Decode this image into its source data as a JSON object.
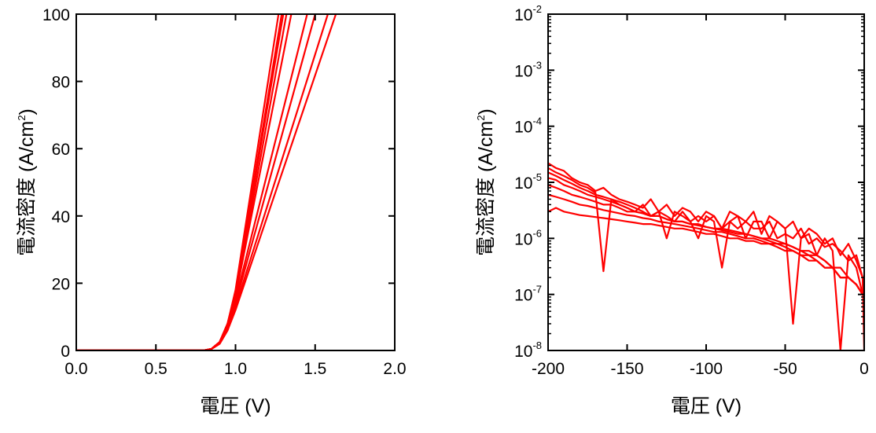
{
  "colors": {
    "series": "#ff0000",
    "axes": "#000000",
    "background": "#ffffff"
  },
  "chart_data": [
    {
      "type": "line",
      "xlabel": "電圧 (V)",
      "ylabel": "電流密度 (A/cm²)",
      "ylabel_parts": {
        "text": "電流密度 (A/cm",
        "sup": "2",
        "close": ")"
      },
      "xlim": [
        0.0,
        2.0
      ],
      "ylim": [
        0,
        100
      ],
      "xscale": "linear",
      "yscale": "linear",
      "x_ticks": [
        0.0,
        0.5,
        1.0,
        1.5,
        2.0
      ],
      "x_tick_labels": [
        "0.0",
        "0.5",
        "1.0",
        "1.5",
        "2.0"
      ],
      "y_ticks": [
        0,
        20,
        40,
        60,
        80,
        100
      ],
      "y_tick_labels": [
        "0",
        "20",
        "40",
        "60",
        "80",
        "100"
      ],
      "grid": false,
      "legend": "none",
      "series": [
        {
          "x": [
            0.0,
            0.8,
            0.85,
            0.9,
            0.95,
            1.0,
            1.27
          ],
          "y": [
            0,
            0,
            0.5,
            2.5,
            8,
            18,
            100
          ]
        },
        {
          "x": [
            0.0,
            0.8,
            0.85,
            0.9,
            0.95,
            1.0,
            1.29
          ],
          "y": [
            0,
            0,
            0.5,
            2.5,
            8,
            17,
            100
          ]
        },
        {
          "x": [
            0.0,
            0.8,
            0.85,
            0.9,
            0.95,
            1.0,
            1.3
          ],
          "y": [
            0,
            0,
            0.5,
            2.5,
            8,
            17,
            100
          ]
        },
        {
          "x": [
            0.0,
            0.8,
            0.85,
            0.9,
            0.95,
            1.0,
            1.32
          ],
          "y": [
            0,
            0,
            0.5,
            2.5,
            7,
            16,
            100
          ]
        },
        {
          "x": [
            0.0,
            0.8,
            0.85,
            0.9,
            0.95,
            1.0,
            1.35
          ],
          "y": [
            0,
            0,
            0.5,
            2.5,
            7,
            16,
            100
          ]
        },
        {
          "x": [
            0.0,
            0.8,
            0.85,
            0.9,
            0.95,
            1.0,
            1.45
          ],
          "y": [
            0,
            0,
            0.5,
            2.5,
            7,
            15,
            100
          ]
        },
        {
          "x": [
            0.0,
            0.8,
            0.85,
            0.9,
            0.95,
            1.0,
            1.5
          ],
          "y": [
            0,
            0,
            0.5,
            2,
            6,
            14,
            100
          ]
        },
        {
          "x": [
            0.0,
            0.8,
            0.85,
            0.9,
            0.95,
            1.0,
            1.58
          ],
          "y": [
            0,
            0,
            0.5,
            2,
            6,
            13,
            100
          ]
        },
        {
          "x": [
            0.0,
            0.8,
            0.85,
            0.9,
            0.95,
            1.0,
            1.63
          ],
          "y": [
            0,
            0,
            0.5,
            2,
            6,
            12,
            100
          ]
        }
      ]
    },
    {
      "type": "line",
      "xlabel": "電圧 (V)",
      "ylabel": "電流密度 (A/cm²)",
      "ylabel_parts": {
        "text": "電流密度 (A/cm",
        "sup": "2",
        "close": ")"
      },
      "xlim": [
        -200,
        0
      ],
      "ylim": [
        1e-08,
        0.01
      ],
      "xscale": "linear",
      "yscale": "log",
      "x_ticks": [
        -200,
        -150,
        -100,
        -50,
        0
      ],
      "x_tick_labels": [
        "-200",
        "-150",
        "-100",
        "-50",
        "0"
      ],
      "y_ticks": [
        1e-08,
        1e-07,
        1e-06,
        1e-05,
        0.0001,
        0.001,
        0.01
      ],
      "y_tick_labels": [
        {
          "base": "10",
          "exp": "-8"
        },
        {
          "base": "10",
          "exp": "-7"
        },
        {
          "base": "10",
          "exp": "-6"
        },
        {
          "base": "10",
          "exp": "-5"
        },
        {
          "base": "10",
          "exp": "-4"
        },
        {
          "base": "10",
          "exp": "-3"
        },
        {
          "base": "10",
          "exp": "-2"
        }
      ],
      "grid": false,
      "legend": "none",
      "series": [
        {
          "x": [
            -200,
            -195,
            -190,
            -185,
            -180,
            -175,
            -170,
            -165,
            -160,
            -155,
            -150,
            -145,
            -140,
            -135,
            -130,
            -125,
            -120,
            -115,
            -110,
            -105,
            -100,
            -95,
            -90,
            -85,
            -80,
            -75,
            -70,
            -65,
            -60,
            -55,
            -50,
            -45,
            -40,
            -35,
            -30,
            -25,
            -20,
            -15,
            -10,
            -5,
            -1,
            0
          ],
          "y": [
            2.2e-05,
            1.8e-05,
            1.6e-05,
            1.2e-05,
            1e-05,
            9e-06,
            7e-06,
            8e-06,
            6e-06,
            5e-06,
            4.5e-06,
            4e-06,
            3.5e-06,
            5e-06,
            3e-06,
            4e-06,
            2.5e-06,
            3.5e-06,
            3e-06,
            2e-06,
            3e-06,
            2.5e-06,
            1.5e-06,
            3e-06,
            2.5e-06,
            2e-06,
            3e-06,
            1.2e-06,
            2.5e-06,
            2e-06,
            1.5e-06,
            2e-06,
            1e-06,
            1.5e-06,
            1.2e-06,
            8e-07,
            1e-06,
            5e-07,
            8e-07,
            4e-07,
            2e-07,
            1e-08
          ]
        },
        {
          "x": [
            -200,
            -195,
            -190,
            -185,
            -180,
            -175,
            -170,
            -165,
            -160,
            -155,
            -150,
            -145,
            -140,
            -135,
            -130,
            -125,
            -120,
            -115,
            -110,
            -105,
            -100,
            -95,
            -90,
            -85,
            -80,
            -75,
            -70,
            -65,
            -60,
            -55,
            -50,
            -45,
            -40,
            -35,
            -30,
            -25,
            -20,
            -15,
            -10,
            -5,
            -1
          ],
          "y": [
            1.8e-05,
            1.5e-05,
            1.3e-05,
            1.1e-05,
            9e-06,
            8e-06,
            6.5e-06,
            2.6e-07,
            5e-06,
            4.5e-06,
            4e-06,
            3.5e-06,
            3e-06,
            2.5e-06,
            3e-06,
            1e-06,
            3e-06,
            2.5e-06,
            2e-06,
            2.5e-06,
            2e-06,
            2.5e-06,
            1.5e-06,
            2e-06,
            2.5e-06,
            1e-06,
            2e-06,
            2e-06,
            1e-06,
            2e-06,
            1.5e-06,
            3e-08,
            1e-06,
            1.2e-06,
            5e-07,
            1e-06,
            6e-07,
            1e-08,
            5e-07,
            3e-07,
            1e-07
          ]
        },
        {
          "x": [
            -200,
            -195,
            -190,
            -185,
            -180,
            -175,
            -170,
            -165,
            -160,
            -155,
            -150,
            -145,
            -140,
            -135,
            -130,
            -125,
            -120,
            -115,
            -110,
            -105,
            -100,
            -95,
            -90,
            -85,
            -80,
            -75,
            -70,
            -65,
            -60,
            -55,
            -50,
            -45,
            -40,
            -35,
            -30,
            -25,
            -20,
            -15,
            -10,
            -5,
            -1
          ],
          "y": [
            1.5e-05,
            1.3e-05,
            1.1e-05,
            9.5e-06,
            8e-06,
            7e-06,
            6e-06,
            5.5e-06,
            5e-06,
            4e-06,
            3.5e-06,
            3e-06,
            4e-06,
            2.5e-06,
            3e-06,
            2.5e-06,
            2e-06,
            3e-06,
            2e-06,
            1e-06,
            2.5e-06,
            2e-06,
            3e-07,
            2e-06,
            1.5e-06,
            2e-06,
            1.5e-06,
            1.5e-06,
            2e-06,
            1e-06,
            1.2e-06,
            1e-06,
            1.5e-06,
            8e-07,
            1e-06,
            7e-07,
            8e-07,
            6e-07,
            4e-07,
            5e-07,
            2e-07
          ]
        },
        {
          "x": [
            -200,
            -195,
            -190,
            -185,
            -180,
            -175,
            -170,
            -165,
            -160,
            -155,
            -150,
            -145,
            -140,
            -135,
            -130,
            -125,
            -120,
            -115,
            -110,
            -105,
            -100,
            -95,
            -90,
            -85,
            -80,
            -75,
            -70,
            -65,
            -60,
            -55,
            -50,
            -45,
            -40,
            -35,
            -30,
            -25,
            -20,
            -15,
            -10,
            -5,
            -1
          ],
          "y": [
            1.2e-05,
            1.1e-05,
            9e-06,
            8e-06,
            7e-06,
            6e-06,
            5.5e-06,
            5e-06,
            4.5e-06,
            4e-06,
            3.5e-06,
            3e-06,
            2.8e-06,
            2.5e-06,
            2.5e-06,
            2.2e-06,
            2e-06,
            2e-06,
            1.8e-06,
            1.8e-06,
            1.6e-06,
            1.5e-06,
            1.4e-06,
            1.3e-06,
            1.2e-06,
            1.2e-06,
            1.1e-06,
            1e-06,
            9e-07,
            8e-07,
            8e-07,
            7e-07,
            6e-07,
            5e-07,
            5e-07,
            4e-07,
            3e-07,
            2e-07,
            2e-07,
            1.5e-07,
            1e-07
          ]
        },
        {
          "x": [
            -200,
            -195,
            -190,
            -185,
            -180,
            -175,
            -170,
            -165,
            -160,
            -155,
            -150,
            -145,
            -140,
            -135,
            -130,
            -125,
            -120,
            -115,
            -110,
            -105,
            -100,
            -95,
            -90,
            -85,
            -80,
            -75,
            -70,
            -65,
            -60,
            -55,
            -50,
            -45,
            -40,
            -35,
            -30,
            -25,
            -20,
            -15,
            -10,
            -5,
            -1
          ],
          "y": [
            9e-06,
            8e-06,
            7e-06,
            6e-06,
            5.5e-06,
            5e-06,
            4.5e-06,
            4e-06,
            4e-06,
            3.5e-06,
            3e-06,
            3e-06,
            2.8e-06,
            2.5e-06,
            2.5e-06,
            2.2e-06,
            2e-06,
            2e-06,
            1.8e-06,
            1.7e-06,
            1.6e-06,
            1.5e-06,
            1.5e-06,
            1.4e-06,
            1.3e-06,
            1.2e-06,
            1.1e-06,
            1e-06,
            1e-06,
            9e-07,
            8e-07,
            7e-07,
            6e-07,
            6e-07,
            5e-07,
            4e-07,
            3e-07,
            3e-07,
            2e-07,
            1.5e-07,
            1e-07
          ]
        },
        {
          "x": [
            -200,
            -195,
            -190,
            -185,
            -180,
            -175,
            -170,
            -165,
            -160,
            -155,
            -150,
            -145,
            -140,
            -135,
            -130,
            -125,
            -120,
            -115,
            -110,
            -105,
            -100,
            -95,
            -90,
            -85,
            -80,
            -75,
            -70,
            -65,
            -60,
            -55,
            -50,
            -45,
            -40,
            -35,
            -30,
            -25,
            -20,
            -15,
            -10,
            -5,
            -1
          ],
          "y": [
            6e-06,
            5.5e-06,
            5e-06,
            4.5e-06,
            4e-06,
            3.8e-06,
            3.5e-06,
            3.2e-06,
            3e-06,
            2.8e-06,
            2.6e-06,
            2.5e-06,
            2.3e-06,
            2.2e-06,
            2e-06,
            1.9e-06,
            1.8e-06,
            1.7e-06,
            1.6e-06,
            1.5e-06,
            1.4e-06,
            1.3e-06,
            1.3e-06,
            1.2e-06,
            1.1e-06,
            1e-06,
            1e-06,
            9e-07,
            8e-07,
            8e-07,
            7e-07,
            6e-07,
            5e-07,
            5e-07,
            4e-07,
            3e-07,
            3e-07,
            2e-07,
            2e-07,
            1.5e-07,
            1e-07
          ]
        },
        {
          "x": [
            -200,
            -195,
            -190,
            -185,
            -180,
            -175,
            -170,
            -165,
            -160,
            -155,
            -150,
            -145,
            -140,
            -135,
            -130,
            -125,
            -120,
            -115,
            -110,
            -105,
            -100,
            -95,
            -90,
            -85,
            -80,
            -75,
            -70,
            -65,
            -60,
            -55,
            -50,
            -45,
            -40,
            -35,
            -30,
            -25,
            -20,
            -15,
            -10,
            -5,
            -1
          ],
          "y": [
            3e-06,
            3.5e-06,
            3e-06,
            2.8e-06,
            2.6e-06,
            2.5e-06,
            2.4e-06,
            2.3e-06,
            2.2e-06,
            2.1e-06,
            2e-06,
            1.9e-06,
            1.8e-06,
            1.8e-06,
            1.7e-06,
            1.6e-06,
            1.5e-06,
            1.5e-06,
            1.4e-06,
            1.3e-06,
            1.2e-06,
            1.2e-06,
            1.1e-06,
            1e-06,
            1e-06,
            9e-07,
            9e-07,
            8e-07,
            8e-07,
            7e-07,
            6e-07,
            6e-07,
            5e-07,
            4e-07,
            4e-07,
            3e-07,
            3e-07,
            2e-07,
            2e-07,
            1.5e-07,
            1e-07
          ]
        }
      ]
    }
  ]
}
